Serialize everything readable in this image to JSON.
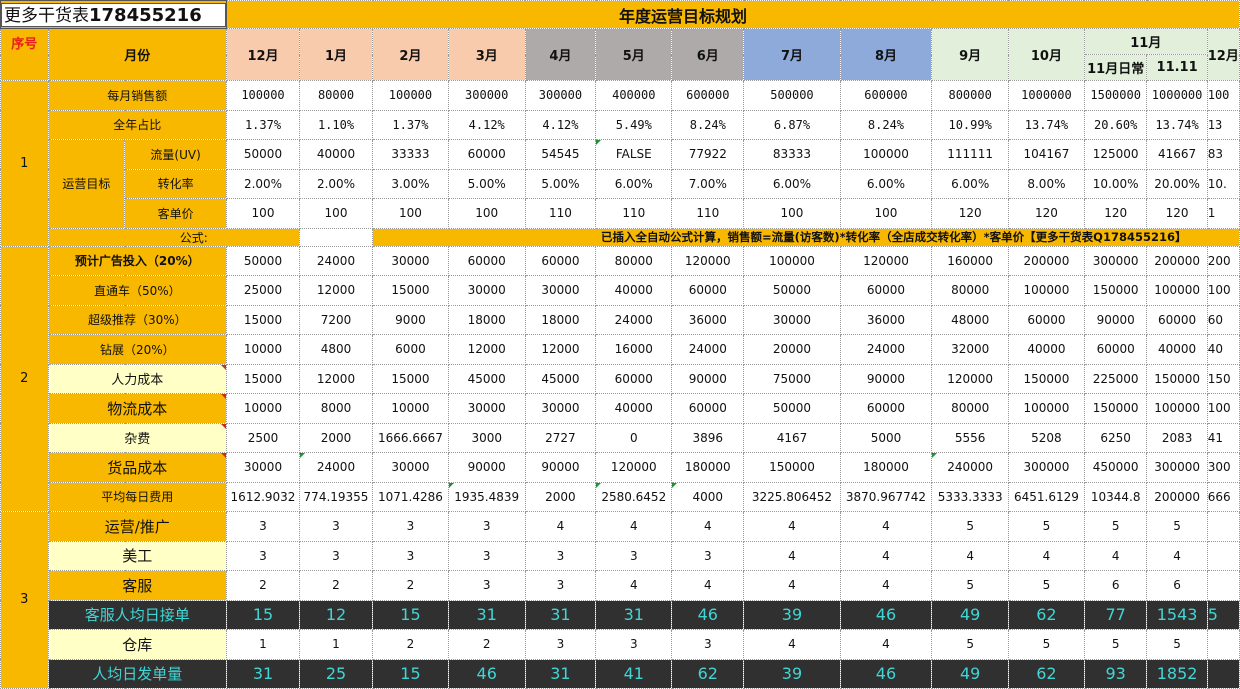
{
  "title_left": {
    "prefix": "更多干货表",
    "number": "178455216"
  },
  "title_main": "年度运营目标规划",
  "header": {
    "seq": "序号",
    "month": "月份",
    "months": [
      "12月",
      "1月",
      "2月",
      "3月",
      "4月",
      "5月",
      "6月",
      "7月",
      "8月",
      "9月",
      "10月"
    ],
    "nov_group": "11月",
    "nov_sub": [
      "11月日常",
      "11.11"
    ],
    "dec_partial": "12月"
  },
  "colors": {
    "gold": "#f9b800",
    "peach": "#f8cbad",
    "grey": "#aeaaaa",
    "blue": "#8eaadb",
    "lightgreen": "#e2efda",
    "cream": "#ffffc6",
    "dark": "#303030",
    "cyan": "#40d6d6"
  },
  "section1": {
    "seq": "1",
    "group_label": "运营目标",
    "rows": [
      {
        "label": "每月销售额",
        "values": [
          "100000",
          "80000",
          "100000",
          "300000",
          "300000",
          "400000",
          "600000",
          "500000",
          "600000",
          "800000",
          "1000000",
          "1500000",
          "1000000",
          "100"
        ]
      },
      {
        "label": "全年占比",
        "values": [
          "1.37%",
          "1.10%",
          "1.37%",
          "4.12%",
          "4.12%",
          "5.49%",
          "8.24%",
          "6.87%",
          "8.24%",
          "10.99%",
          "13.74%",
          "20.60%",
          "13.74%",
          "13"
        ]
      },
      {
        "label": "流量(UV)",
        "values": [
          "50000",
          "40000",
          "33333",
          "60000",
          "54545",
          "FALSE",
          "77922",
          "83333",
          "100000",
          "111111",
          "104167",
          "125000",
          "41667",
          "83"
        ]
      },
      {
        "label": "转化率",
        "values": [
          "2.00%",
          "2.00%",
          "3.00%",
          "5.00%",
          "5.00%",
          "6.00%",
          "7.00%",
          "6.00%",
          "6.00%",
          "6.00%",
          "8.00%",
          "10.00%",
          "20.00%",
          "10."
        ]
      },
      {
        "label": "客单价",
        "values": [
          "100",
          "100",
          "100",
          "100",
          "110",
          "110",
          "110",
          "100",
          "100",
          "120",
          "120",
          "120",
          "120",
          "1"
        ]
      }
    ],
    "formula_label": "公式:",
    "formula_text": "已插入全自动公式计算，销售额=流量(访客数)*转化率（全店成交转化率）*客单价【更多干货表Q178455216】"
  },
  "section2": {
    "seq": "2",
    "rows": [
      {
        "label": "预计广告投入（20%）",
        "values": [
          "50000",
          "24000",
          "30000",
          "60000",
          "60000",
          "80000",
          "120000",
          "100000",
          "120000",
          "160000",
          "200000",
          "300000",
          "200000",
          "200"
        ]
      },
      {
        "label": "直通车（50%）",
        "values": [
          "25000",
          "12000",
          "15000",
          "30000",
          "30000",
          "40000",
          "60000",
          "50000",
          "60000",
          "80000",
          "100000",
          "150000",
          "100000",
          "100"
        ]
      },
      {
        "label": "超级推荐（30%）",
        "values": [
          "15000",
          "7200",
          "9000",
          "18000",
          "18000",
          "24000",
          "36000",
          "30000",
          "36000",
          "48000",
          "60000",
          "90000",
          "60000",
          "60"
        ]
      },
      {
        "label": "钻展（20%）",
        "values": [
          "10000",
          "4800",
          "6000",
          "12000",
          "12000",
          "16000",
          "24000",
          "20000",
          "24000",
          "32000",
          "40000",
          "60000",
          "40000",
          "40"
        ]
      },
      {
        "label": "人力成本",
        "values": [
          "15000",
          "12000",
          "15000",
          "45000",
          "45000",
          "60000",
          "90000",
          "75000",
          "90000",
          "120000",
          "150000",
          "225000",
          "150000",
          "150"
        ]
      },
      {
        "label": "物流成本",
        "values": [
          "10000",
          "8000",
          "10000",
          "30000",
          "30000",
          "40000",
          "60000",
          "50000",
          "60000",
          "80000",
          "100000",
          "150000",
          "100000",
          "100"
        ]
      },
      {
        "label": "杂费",
        "values": [
          "2500",
          "2000",
          "1666.6667",
          "3000",
          "2727",
          "0",
          "3896",
          "4167",
          "5000",
          "5556",
          "5208",
          "6250",
          "2083",
          "41"
        ]
      },
      {
        "label": "货品成本",
        "values": [
          "30000",
          "24000",
          "30000",
          "90000",
          "90000",
          "120000",
          "180000",
          "150000",
          "180000",
          "240000",
          "300000",
          "450000",
          "300000",
          "300"
        ]
      },
      {
        "label": "平均每日费用",
        "values": [
          "1612.9032",
          "774.19355",
          "1071.4286",
          "1935.4839",
          "2000",
          "2580.6452",
          "4000",
          "3225.806452",
          "3870.967742",
          "5333.3333",
          "6451.6129",
          "10344.8",
          "200000",
          "666"
        ]
      }
    ]
  },
  "section3": {
    "seq": "3",
    "rows": [
      {
        "label": "运营/推广",
        "values": [
          "3",
          "3",
          "3",
          "3",
          "4",
          "4",
          "4",
          "4",
          "4",
          "5",
          "5",
          "5",
          "5",
          ""
        ]
      },
      {
        "label": "美工",
        "values": [
          "3",
          "3",
          "3",
          "3",
          "3",
          "3",
          "3",
          "4",
          "4",
          "4",
          "4",
          "4",
          "4",
          ""
        ]
      },
      {
        "label": "客服",
        "values": [
          "2",
          "2",
          "2",
          "3",
          "3",
          "4",
          "4",
          "4",
          "4",
          "5",
          "5",
          "6",
          "6",
          ""
        ]
      },
      {
        "label": "客服人均日接单",
        "values": [
          "15",
          "12",
          "15",
          "31",
          "31",
          "31",
          "46",
          "39",
          "46",
          "49",
          "62",
          "77",
          "1543",
          "5"
        ]
      },
      {
        "label": "仓库",
        "values": [
          "1",
          "1",
          "2",
          "2",
          "3",
          "3",
          "3",
          "4",
          "4",
          "5",
          "5",
          "5",
          "5",
          ""
        ]
      },
      {
        "label": "人均日发单量",
        "values": [
          "31",
          "25",
          "15",
          "46",
          "31",
          "41",
          "62",
          "39",
          "46",
          "49",
          "62",
          "93",
          "1852",
          ""
        ]
      }
    ]
  }
}
